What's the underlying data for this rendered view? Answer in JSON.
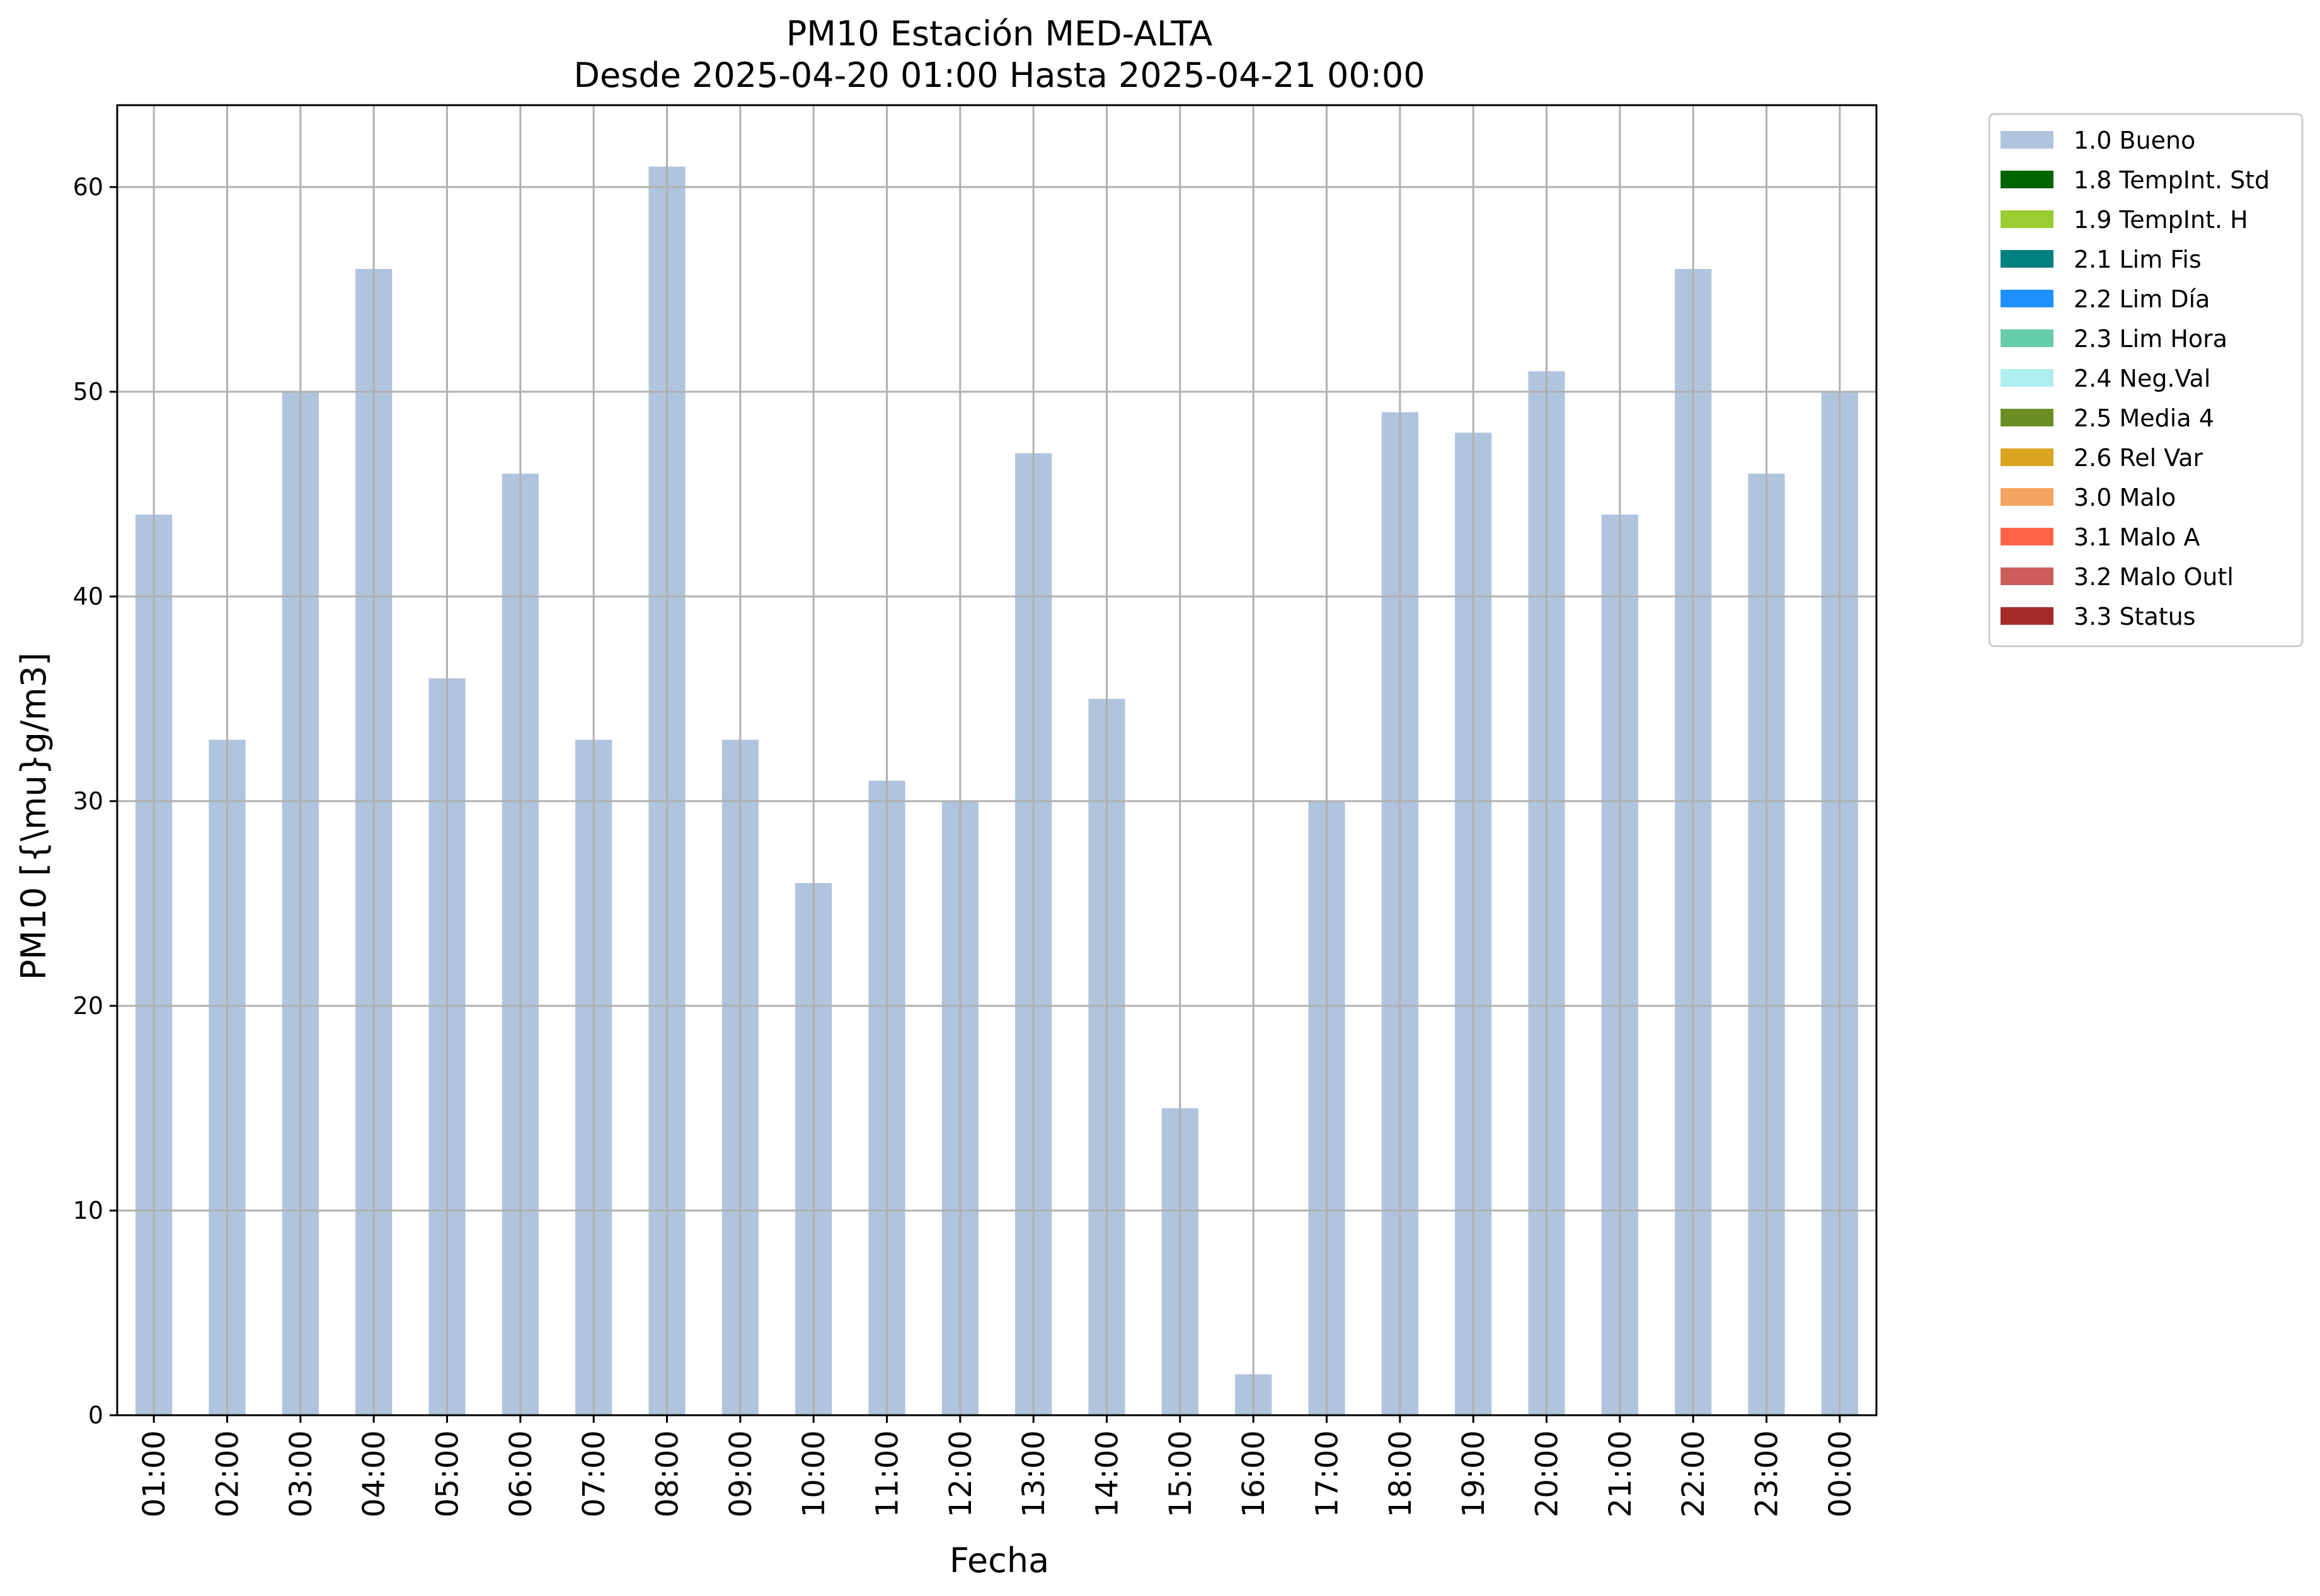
{
  "chart_data": {
    "type": "bar",
    "title": "PM10 Estación MED-ALTA",
    "subtitle": "Desde 2025-04-20 01:00 Hasta 2025-04-21 00:00",
    "xlabel": "Fecha",
    "ylabel": "PM10 [{\\mu}g/m3]",
    "categories": [
      "01:00",
      "02:00",
      "03:00",
      "04:00",
      "05:00",
      "06:00",
      "07:00",
      "08:00",
      "09:00",
      "10:00",
      "11:00",
      "12:00",
      "13:00",
      "14:00",
      "15:00",
      "16:00",
      "17:00",
      "18:00",
      "19:00",
      "20:00",
      "21:00",
      "22:00",
      "23:00",
      "00:00"
    ],
    "series": [
      {
        "name": "1.0 Bueno",
        "color": "#b0c4de",
        "values": [
          44,
          33,
          50,
          56,
          36,
          46,
          33,
          61,
          33,
          26,
          31,
          30,
          47,
          35,
          15,
          2,
          30,
          49,
          48,
          51,
          44,
          56,
          46,
          50
        ]
      }
    ],
    "ylim": [
      0,
      64
    ],
    "yticks": [
      0,
      10,
      20,
      30,
      40,
      50,
      60
    ],
    "grid": true,
    "legend_position": "outside-top-right",
    "legend": [
      {
        "label": "1.0 Bueno",
        "color": "#b0c4de"
      },
      {
        "label": "1.8 TempInt. Std",
        "color": "#006400"
      },
      {
        "label": "1.9 TempInt. H",
        "color": "#9acd32"
      },
      {
        "label": "2.1 Lim Fis",
        "color": "#008080"
      },
      {
        "label": "2.2 Lim Día",
        "color": "#1e90ff"
      },
      {
        "label": "2.3 Lim Hora",
        "color": "#66cdaa"
      },
      {
        "label": "2.4 Neg.Val",
        "color": "#afeeee"
      },
      {
        "label": "2.5 Media 4",
        "color": "#6b8e23"
      },
      {
        "label": "2.6 Rel Var",
        "color": "#daa520"
      },
      {
        "label": "3.0 Malo",
        "color": "#f4a460"
      },
      {
        "label": "3.1 Malo A",
        "color": "#ff6347"
      },
      {
        "label": "3.2 Malo Outl",
        "color": "#cd5c5c"
      },
      {
        "label": "3.3 Status",
        "color": "#a52a2a"
      }
    ]
  }
}
